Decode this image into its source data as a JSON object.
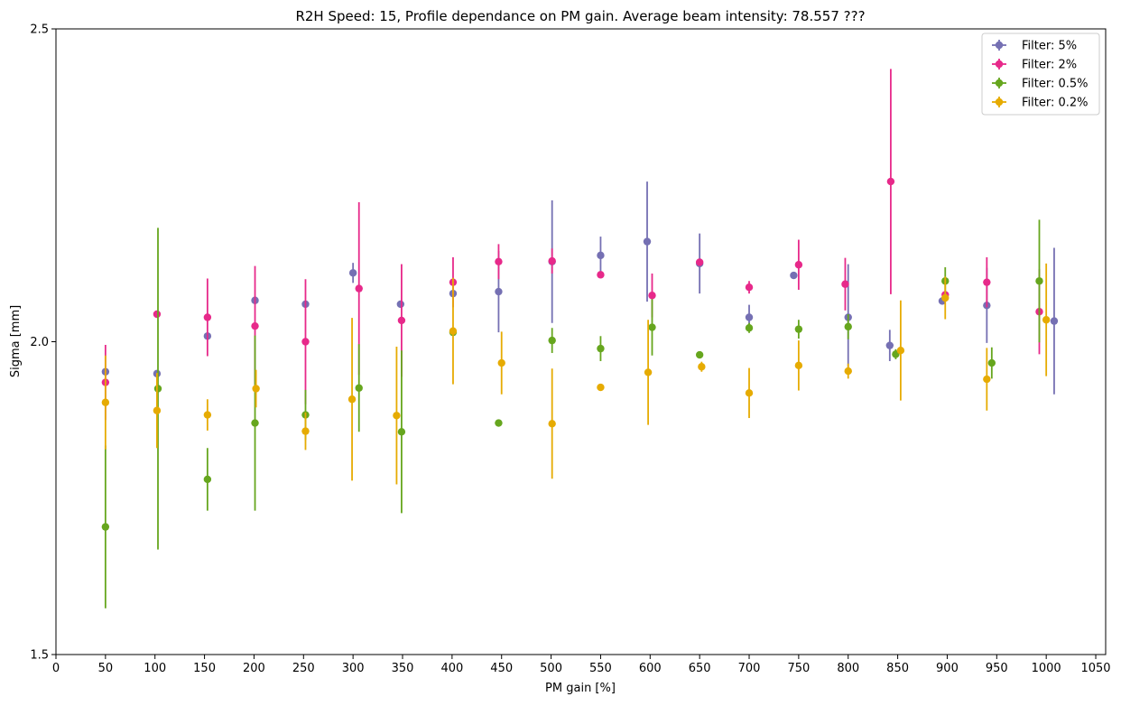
{
  "chart_data": {
    "type": "scatter",
    "title": "R2H Speed: 15, Profile dependance on PM gain. Average beam intensity: 78.557 ???",
    "xlabel": "PM gain [%]",
    "ylabel": "Sigma [mm]",
    "xlim": [
      0,
      1060
    ],
    "ylim": [
      1.5,
      2.5
    ],
    "xticks": [
      "0",
      "50",
      "100",
      "150",
      "200",
      "250",
      "300",
      "350",
      "400",
      "450",
      "500",
      "550",
      "600",
      "650",
      "700",
      "750",
      "800",
      "850",
      "900",
      "950",
      "1000",
      "1050"
    ],
    "yticks": [
      "1.5",
      "2.0",
      "2.5"
    ],
    "grid": false,
    "legend_position": "top-right",
    "series": [
      {
        "name": "Filter: 5%",
        "color": "#7570b3",
        "points": [
          {
            "x": 50,
            "y": 1.952,
            "yerr": 0.004
          },
          {
            "x": 102,
            "y": 1.949,
            "yerr": 0.004
          },
          {
            "x": 153,
            "y": 2.009,
            "yerr": 0.004
          },
          {
            "x": 201,
            "y": 2.066,
            "yerr": 0.003
          },
          {
            "x": 252,
            "y": 2.06,
            "yerr": 0.003
          },
          {
            "x": 300,
            "y": 2.11,
            "yerr": 0.016
          },
          {
            "x": 348,
            "y": 2.06,
            "yerr": 0.003
          },
          {
            "x": 401,
            "y": 2.077,
            "yerr": 0.003
          },
          {
            "x": 447,
            "y": 2.08,
            "yerr": 0.065
          },
          {
            "x": 501,
            "y": 2.128,
            "yerr": 0.098
          },
          {
            "x": 550,
            "y": 2.138,
            "yerr": 0.03
          },
          {
            "x": 597,
            "y": 2.16,
            "yerr": 0.096
          },
          {
            "x": 650,
            "y": 2.125,
            "yerr": 0.048
          },
          {
            "x": 700,
            "y": 2.039,
            "yerr": 0.02
          },
          {
            "x": 745,
            "y": 2.106,
            "yerr": 0.003
          },
          {
            "x": 800,
            "y": 2.039,
            "yerr": 0.085
          },
          {
            "x": 842,
            "y": 1.994,
            "yerr": 0.025
          },
          {
            "x": 895,
            "y": 2.065,
            "yerr": 0.005
          },
          {
            "x": 940,
            "y": 2.058,
            "yerr": 0.06
          },
          {
            "x": 1008,
            "y": 2.033,
            "yerr": 0.117
          }
        ]
      },
      {
        "name": "Filter: 2%",
        "color": "#e7298a",
        "points": [
          {
            "x": 50,
            "y": 1.935,
            "yerr": 0.06
          },
          {
            "x": 102,
            "y": 2.044,
            "yerr": 0.004
          },
          {
            "x": 153,
            "y": 2.039,
            "yerr": 0.062
          },
          {
            "x": 201,
            "y": 2.025,
            "yerr": 0.096
          },
          {
            "x": 252,
            "y": 2.0,
            "yerr": 0.1
          },
          {
            "x": 306,
            "y": 2.085,
            "yerr": 0.138
          },
          {
            "x": 349,
            "y": 2.034,
            "yerr": 0.09
          },
          {
            "x": 401,
            "y": 2.095,
            "yerr": 0.04
          },
          {
            "x": 447,
            "y": 2.128,
            "yerr": 0.028
          },
          {
            "x": 501,
            "y": 2.129,
            "yerr": 0.02
          },
          {
            "x": 550,
            "y": 2.107,
            "yerr": 0.004
          },
          {
            "x": 602,
            "y": 2.074,
            "yerr": 0.035
          },
          {
            "x": 650,
            "y": 2.127,
            "yerr": 0.004
          },
          {
            "x": 700,
            "y": 2.087,
            "yerr": 0.01
          },
          {
            "x": 750,
            "y": 2.123,
            "yerr": 0.04
          },
          {
            "x": 797,
            "y": 2.092,
            "yerr": 0.042
          },
          {
            "x": 843,
            "y": 2.256,
            "yerr": 0.18
          },
          {
            "x": 898,
            "y": 2.075,
            "yerr": 0.004
          },
          {
            "x": 940,
            "y": 2.095,
            "yerr": 0.04
          },
          {
            "x": 993,
            "y": 2.048,
            "yerr": 0.068
          }
        ]
      },
      {
        "name": "Filter: 0.5%",
        "color": "#66a61e",
        "points": [
          {
            "x": 50,
            "y": 1.704,
            "yerr": 0.13
          },
          {
            "x": 103,
            "y": 1.925,
            "yerr": 0.257
          },
          {
            "x": 153,
            "y": 1.78,
            "yerr": 0.05
          },
          {
            "x": 201,
            "y": 1.87,
            "yerr": 0.14
          },
          {
            "x": 252,
            "y": 1.883,
            "yerr": 0.04
          },
          {
            "x": 306,
            "y": 1.926,
            "yerr": 0.07
          },
          {
            "x": 349,
            "y": 1.856,
            "yerr": 0.13
          },
          {
            "x": 401,
            "y": 2.015,
            "yerr": 0.004
          },
          {
            "x": 447,
            "y": 1.87,
            "yerr": 0.004
          },
          {
            "x": 501,
            "y": 2.002,
            "yerr": 0.02
          },
          {
            "x": 550,
            "y": 1.989,
            "yerr": 0.02
          },
          {
            "x": 602,
            "y": 2.023,
            "yerr": 0.045
          },
          {
            "x": 650,
            "y": 1.979,
            "yerr": 0.004
          },
          {
            "x": 700,
            "y": 2.022,
            "yerr": 0.008
          },
          {
            "x": 750,
            "y": 2.02,
            "yerr": 0.015
          },
          {
            "x": 800,
            "y": 2.024,
            "yerr": 0.02
          },
          {
            "x": 848,
            "y": 1.98,
            "yerr": 0.008
          },
          {
            "x": 898,
            "y": 2.097,
            "yerr": 0.022
          },
          {
            "x": 945,
            "y": 1.966,
            "yerr": 0.025
          },
          {
            "x": 993,
            "y": 2.097,
            "yerr": 0.098
          }
        ]
      },
      {
        "name": "Filter: 0.2%",
        "color": "#e6ab02",
        "points": [
          {
            "x": 50,
            "y": 1.903,
            "yerr": 0.075
          },
          {
            "x": 102,
            "y": 1.89,
            "yerr": 0.06
          },
          {
            "x": 153,
            "y": 1.883,
            "yerr": 0.025
          },
          {
            "x": 202,
            "y": 1.925,
            "yerr": 0.03
          },
          {
            "x": 252,
            "y": 1.857,
            "yerr": 0.03
          },
          {
            "x": 299,
            "y": 1.908,
            "yerr": 0.13
          },
          {
            "x": 344,
            "y": 1.882,
            "yerr": 0.11
          },
          {
            "x": 401,
            "y": 2.017,
            "yerr": 0.085
          },
          {
            "x": 450,
            "y": 1.966,
            "yerr": 0.05
          },
          {
            "x": 501,
            "y": 1.869,
            "yerr": 0.088
          },
          {
            "x": 550,
            "y": 1.927,
            "yerr": 0.004
          },
          {
            "x": 598,
            "y": 1.951,
            "yerr": 0.084
          },
          {
            "x": 652,
            "y": 1.96,
            "yerr": 0.008
          },
          {
            "x": 700,
            "y": 1.918,
            "yerr": 0.04
          },
          {
            "x": 750,
            "y": 1.962,
            "yerr": 0.04
          },
          {
            "x": 800,
            "y": 1.953,
            "yerr": 0.012
          },
          {
            "x": 853,
            "y": 1.986,
            "yerr": 0.08
          },
          {
            "x": 898,
            "y": 2.07,
            "yerr": 0.034
          },
          {
            "x": 940,
            "y": 1.94,
            "yerr": 0.05
          },
          {
            "x": 1000,
            "y": 2.035,
            "yerr": 0.09
          }
        ]
      }
    ]
  }
}
